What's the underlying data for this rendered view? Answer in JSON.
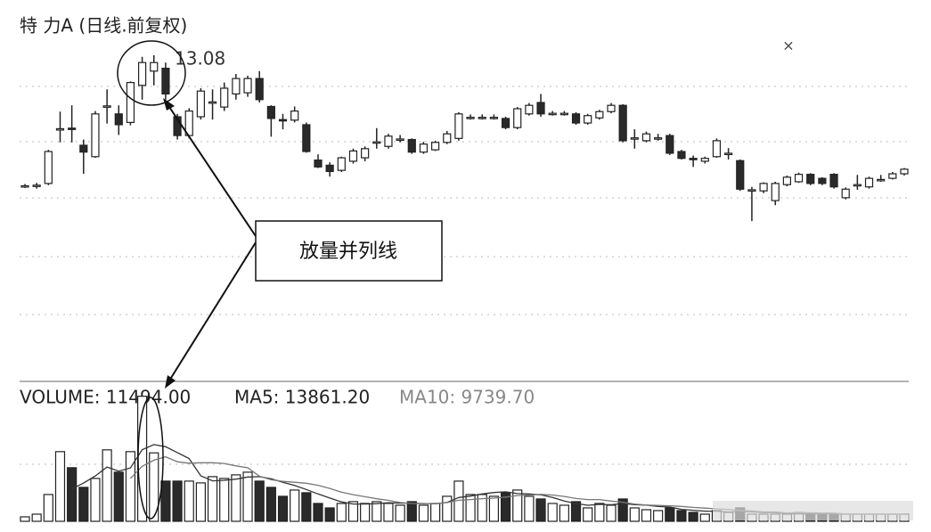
{
  "chart_data": {
    "type": "candlestick",
    "title": "特 力A (日线.前复权)",
    "close_button": "×",
    "annotation": "13.08",
    "callout": "放量并列线",
    "ylim": [
      8.5,
      13.5
    ],
    "colors": {
      "up": "#ffffff",
      "down": "#2a2a2a",
      "line": "#222222"
    },
    "open": [
      10.78,
      10.78,
      10.83,
      11.77,
      11.8,
      11.5,
      11.3,
      12.17,
      12.05,
      11.9,
      12.55,
      12.8,
      12.85,
      12.0,
      11.67,
      12.0,
      12.24,
      12.17,
      12.4,
      12.42,
      12.67,
      12.18,
      11.95,
      11.94,
      11.86,
      11.24,
      11.15,
      11.06,
      11.22,
      11.28,
      11.55,
      11.48,
      11.6,
      11.6,
      11.38,
      11.42,
      11.55,
      11.62,
      11.98,
      11.98,
      11.98,
      11.97,
      11.81,
      12.05,
      12.25,
      12.05,
      12.05,
      12.05,
      11.89,
      11.98,
      12.09,
      12.2,
      11.62,
      11.58,
      11.62,
      11.67,
      11.39,
      11.27,
      11.22,
      11.3,
      11.35,
      11.23,
      10.7,
      10.7,
      10.53,
      10.81,
      10.86,
      10.99,
      10.92,
      10.99,
      10.58,
      10.8,
      10.77,
      10.89,
      10.92,
      11.0
    ],
    "high": [
      10.82,
      10.84,
      11.42,
      12.09,
      12.2,
      11.6,
      12.1,
      12.48,
      12.2,
      12.62,
      13.05,
      13.08,
      12.95,
      12.05,
      12.15,
      12.5,
      12.48,
      12.6,
      12.75,
      12.72,
      12.8,
      12.2,
      12.05,
      12.18,
      11.9,
      11.34,
      11.2,
      11.3,
      11.44,
      11.48,
      11.8,
      11.7,
      11.68,
      11.62,
      11.56,
      11.58,
      11.75,
      12.08,
      12.04,
      12.04,
      12.04,
      12.0,
      12.17,
      12.24,
      12.4,
      12.1,
      12.1,
      12.08,
      12.05,
      12.12,
      12.24,
      12.22,
      11.78,
      11.74,
      11.7,
      11.7,
      11.42,
      11.32,
      11.3,
      11.62,
      11.45,
      11.25,
      10.77,
      10.85,
      10.86,
      10.97,
      11.02,
      11.01,
      10.94,
      11.01,
      10.76,
      10.98,
      10.95,
      10.98,
      11.03,
      11.1
    ],
    "low": [
      10.75,
      10.74,
      10.8,
      11.55,
      11.55,
      11.0,
      11.28,
      11.88,
      11.68,
      11.85,
      12.3,
      12.55,
      12.3,
      11.6,
      11.62,
      11.95,
      11.95,
      12.1,
      12.3,
      12.35,
      12.25,
      11.65,
      11.78,
      11.9,
      11.37,
      11.1,
      10.95,
      11.03,
      11.18,
      11.22,
      11.44,
      11.44,
      11.55,
      11.35,
      11.35,
      11.4,
      11.52,
      11.58,
      11.95,
      11.95,
      11.95,
      11.78,
      11.78,
      12.02,
      12.0,
      12.02,
      12.02,
      11.86,
      11.86,
      11.95,
      12.06,
      11.55,
      11.44,
      11.55,
      11.58,
      11.33,
      11.25,
      11.12,
      11.18,
      11.28,
      11.25,
      10.7,
      10.17,
      10.66,
      10.45,
      10.78,
      10.84,
      10.8,
      10.8,
      10.74,
      10.55,
      10.72,
      10.74,
      10.86,
      10.9,
      10.97
    ],
    "close": [
      10.79,
      10.8,
      11.39,
      11.79,
      11.78,
      11.38,
      12.05,
      12.19,
      11.86,
      12.6,
      12.95,
      12.95,
      12.4,
      11.67,
      12.1,
      12.45,
      12.26,
      12.5,
      12.67,
      12.67,
      12.3,
      11.97,
      11.94,
      12.1,
      11.39,
      11.12,
      11.04,
      11.28,
      11.4,
      11.44,
      11.56,
      11.66,
      11.61,
      11.38,
      11.52,
      11.55,
      11.7,
      12.05,
      11.99,
      11.99,
      11.99,
      11.81,
      12.14,
      12.2,
      12.05,
      12.06,
      12.06,
      11.89,
      12.02,
      12.09,
      12.2,
      11.58,
      11.63,
      11.7,
      11.63,
      11.36,
      11.27,
      11.26,
      11.27,
      11.58,
      11.36,
      10.73,
      10.72,
      10.83,
      10.83,
      10.94,
      10.99,
      10.83,
      10.83,
      10.77,
      10.73,
      10.81,
      10.92,
      10.9,
      11.0,
      11.08
    ],
    "volume": {
      "label": "VOLUME: 11494.00",
      "ylim": [
        0,
        22000
      ],
      "values": [
        750,
        1200,
        4500,
        11700,
        9000,
        5700,
        7200,
        12000,
        8250,
        11700,
        21000,
        11494,
        6750,
        6750,
        6750,
        6450,
        7500,
        7200,
        7800,
        8250,
        6750,
        5700,
        4200,
        5250,
        4800,
        3000,
        2250,
        3000,
        3300,
        3000,
        3300,
        3000,
        2700,
        3300,
        2700,
        3000,
        4200,
        6750,
        4500,
        4500,
        4200,
        4800,
        5250,
        4200,
        3750,
        3000,
        2700,
        3300,
        2250,
        3000,
        2700,
        3750,
        2250,
        1950,
        1800,
        2250,
        1800,
        1500,
        1200,
        1800,
        1500,
        2250,
        1200,
        1200,
        1200,
        1200,
        1500,
        1200,
        1200,
        1200,
        1200,
        1200,
        1200,
        1200,
        1200,
        1200
      ],
      "ma5": {
        "label": "MA5: 13861.20",
        "color": "#333333",
        "values": [
          null,
          null,
          null,
          null,
          5430,
          6420,
          7620,
          9120,
          8430,
          8970,
          12030,
          12890,
          12530,
          11540,
          10550,
          7640,
          6790,
          6880,
          7080,
          7440,
          7500,
          7140,
          6540,
          6030,
          5340,
          4590,
          3900,
          3260,
          2910,
          2910,
          2970,
          3120,
          3060,
          3060,
          3000,
          2940,
          3180,
          3990,
          4230,
          4590,
          4830,
          4950,
          4650,
          4590,
          4440,
          3990,
          3390,
          3000,
          2700,
          2850,
          2790,
          3000,
          2790,
          2730,
          2490,
          2400,
          2010,
          1860,
          1710,
          1710,
          1560,
          1650,
          1590,
          1470,
          1470,
          1260,
          1260,
          1260,
          1260,
          1260,
          1200,
          1200,
          1200,
          1200,
          1200,
          1200
        ]
      },
      "ma10": {
        "label": "MA10: 9739.70",
        "color": "#777777",
        "values": [
          null,
          null,
          null,
          null,
          null,
          null,
          null,
          null,
          null,
          7200,
          9230,
          10260,
          10830,
          9990,
          9760,
          9840,
          9840,
          9710,
          9310,
          9000,
          7570,
          6970,
          6710,
          6560,
          6390,
          6050,
          5520,
          4900,
          4470,
          4130,
          3780,
          3510,
          3160,
          2990,
          2960,
          2960,
          3150,
          3530,
          3650,
          3800,
          3890,
          4070,
          4320,
          4410,
          4520,
          4410,
          4170,
          3830,
          3650,
          3650,
          3390,
          3200,
          2900,
          2720,
          2670,
          2600,
          2500,
          2330,
          2220,
          2100,
          1980,
          1830,
          1730,
          1590,
          1590,
          1410,
          1460,
          1430,
          1370,
          1370,
          1230,
          1230,
          1230,
          1200,
          1200,
          1200
        ]
      }
    }
  }
}
